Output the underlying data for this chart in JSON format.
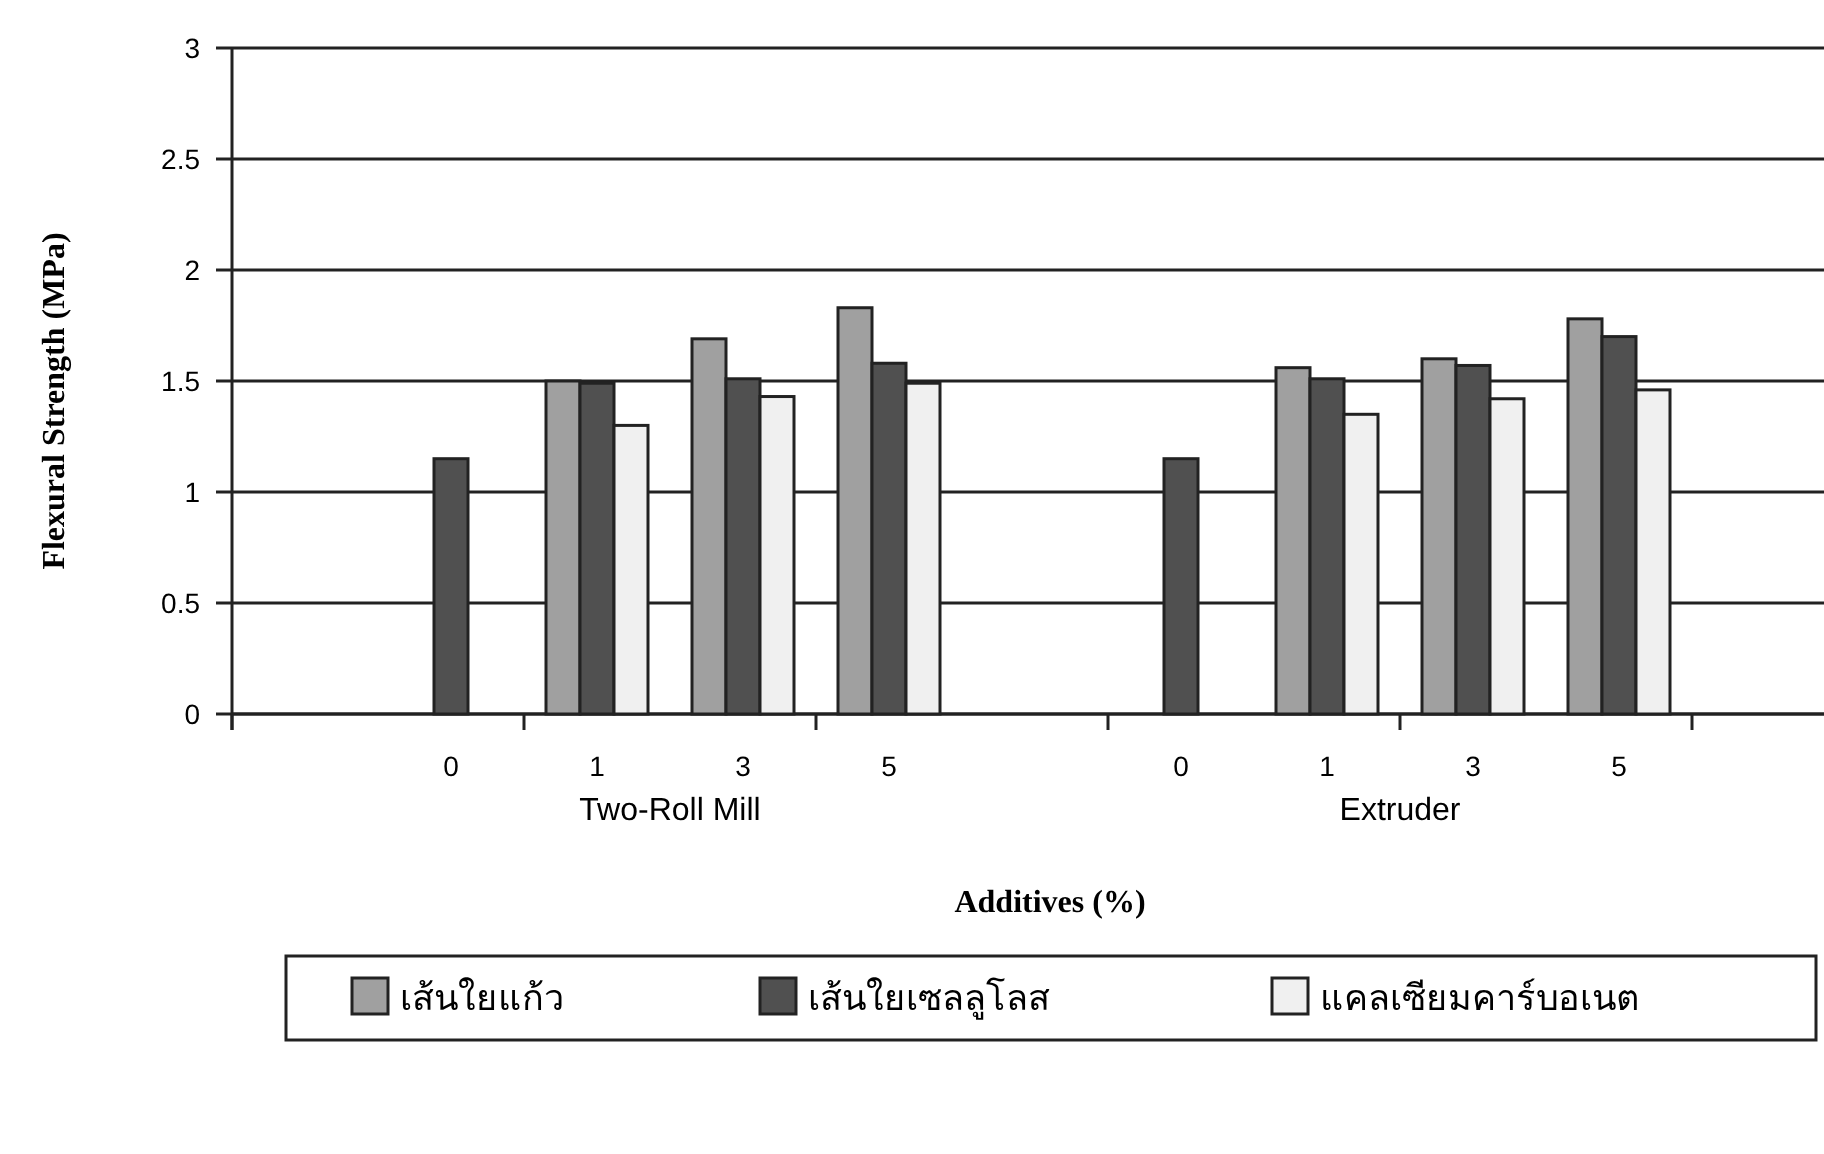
{
  "chart_data": {
    "type": "bar",
    "xlabel": "Additives (%)",
    "ylabel": "Flexural Strength (MPa)",
    "categories": [
      null,
      "0",
      "1",
      "3",
      "5",
      null,
      "0",
      "1",
      "3",
      "5",
      null
    ],
    "series": [
      {
        "name": "เส้นใยแก้ว",
        "color": "#a0a0a0",
        "values": [
          null,
          null,
          1.5,
          1.69,
          1.83,
          null,
          null,
          1.56,
          1.6,
          1.78,
          null
        ]
      },
      {
        "name": "เส้นใยเซลลูโลส",
        "color": "#505050",
        "values": [
          null,
          1.15,
          1.49,
          1.51,
          1.58,
          null,
          1.15,
          1.51,
          1.57,
          1.7,
          null
        ]
      },
      {
        "name": "แคลเซียมคาร์บอเนต",
        "color": "#f0f0f0",
        "values": [
          null,
          null,
          1.3,
          1.43,
          1.49,
          null,
          null,
          1.35,
          1.42,
          1.46,
          null
        ]
      }
    ],
    "annotations": [
      "Two-Roll Mill",
      "Extruder"
    ],
    "ylim": [
      0,
      3
    ],
    "yticks": [
      0,
      0.5,
      1,
      1.5,
      2,
      2.5,
      3
    ],
    "grid": "y",
    "legend": "bottom"
  }
}
